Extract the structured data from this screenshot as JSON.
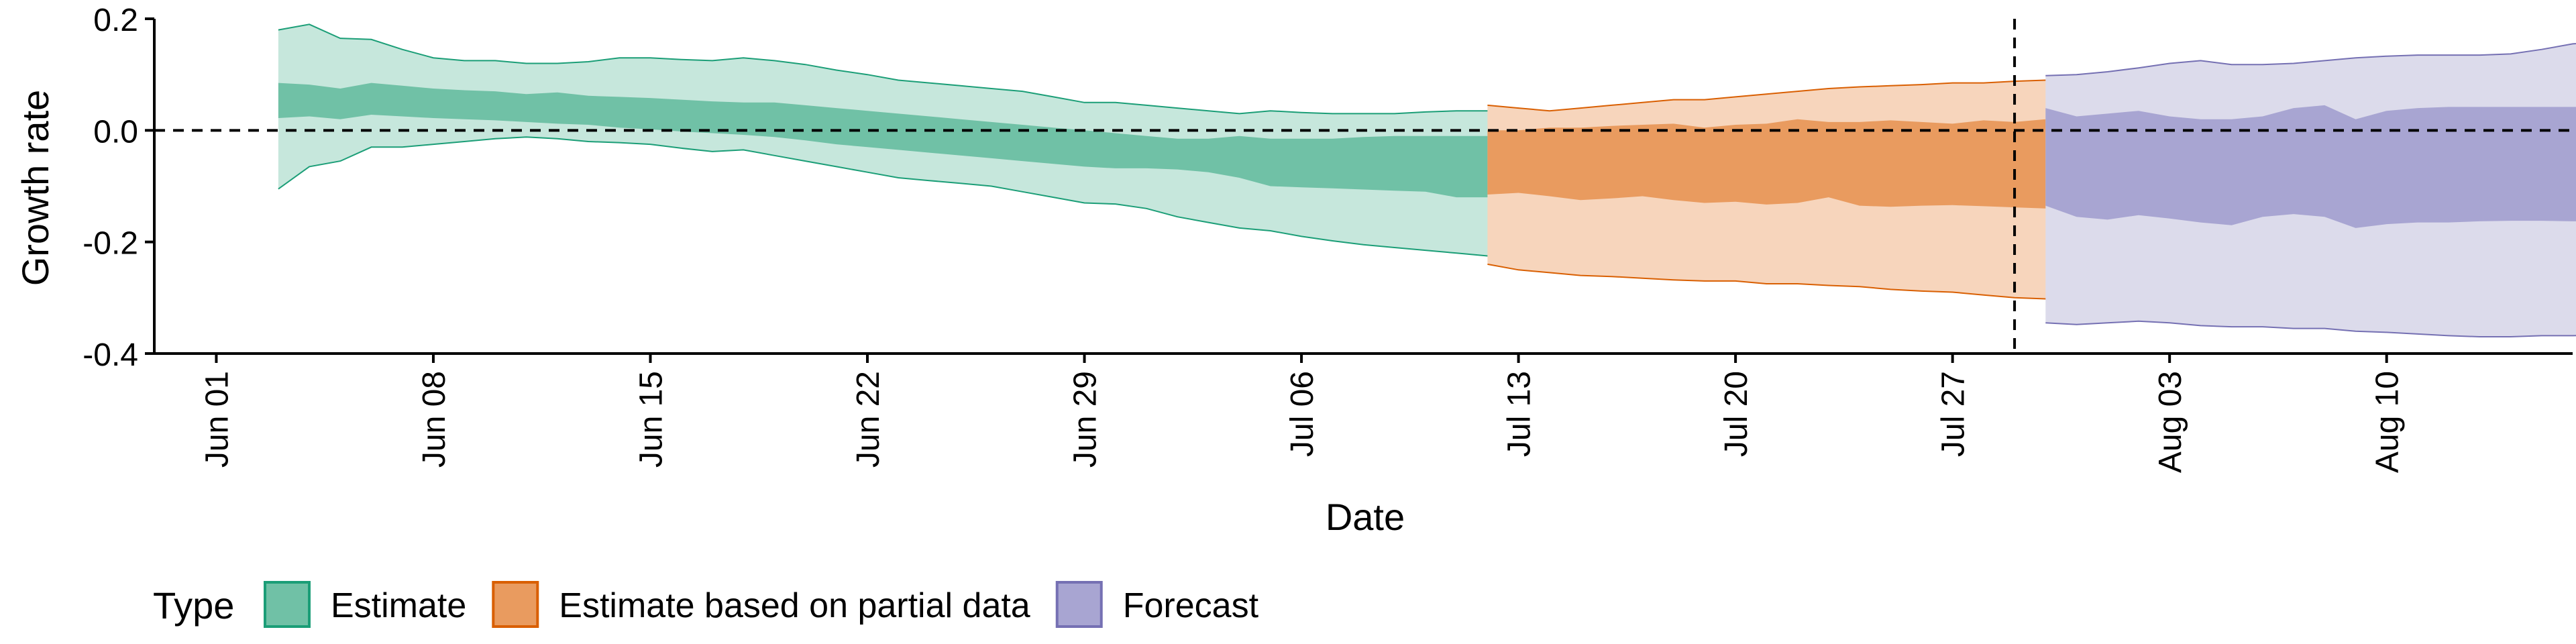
{
  "chart_data": {
    "type": "area",
    "xlabel": "Date",
    "ylabel": "Growth rate",
    "ylim": [
      -0.4,
      0.2
    ],
    "xlim": [
      "2020-05-30",
      "2020-08-16"
    ],
    "x_ticks": [
      "Jun 01",
      "Jun 08",
      "Jun 15",
      "Jun 22",
      "Jun 29",
      "Jul 06",
      "Jul 13",
      "Jul 20",
      "Jul 27",
      "Aug 03",
      "Aug 10"
    ],
    "x_tick_dates": [
      "2020-06-01",
      "2020-06-08",
      "2020-06-15",
      "2020-06-22",
      "2020-06-29",
      "2020-07-06",
      "2020-07-13",
      "2020-07-20",
      "2020-07-27",
      "2020-08-03",
      "2020-08-10"
    ],
    "y_ticks": [
      "0.2",
      "0.0",
      "-0.2",
      "-0.4"
    ],
    "y_tick_values": [
      0.2,
      0.0,
      -0.2,
      -0.4
    ],
    "hline": 0,
    "vline_date": "2020-07-29",
    "grid": false,
    "legend": {
      "title": "Type",
      "position": "bottom-left"
    },
    "series": [
      {
        "name": "Estimate",
        "fill_dark": "#70c1a6",
        "fill_light": "#c6e7dc",
        "stroke": "#1b9e77",
        "start": "2020-06-03",
        "outer_upper": [
          0.18,
          0.19,
          0.165,
          0.163,
          0.145,
          0.13,
          0.125,
          0.125,
          0.12,
          0.12,
          0.123,
          0.13,
          0.13,
          0.127,
          0.125,
          0.13,
          0.125,
          0.118,
          0.108,
          0.1,
          0.09,
          0.085,
          0.08,
          0.075,
          0.07,
          0.06,
          0.05,
          0.05,
          0.045,
          0.04,
          0.035,
          0.03,
          0.035,
          0.032,
          0.03,
          0.03,
          0.03,
          0.033,
          0.035,
          0.035,
          0.04
        ],
        "inner_upper": [
          0.085,
          0.082,
          0.075,
          0.085,
          0.08,
          0.075,
          0.072,
          0.07,
          0.065,
          0.068,
          0.062,
          0.06,
          0.058,
          0.055,
          0.052,
          0.05,
          0.05,
          0.045,
          0.04,
          0.035,
          0.03,
          0.025,
          0.02,
          0.015,
          0.01,
          0.005,
          0.0,
          -0.005,
          -0.01,
          -0.015,
          -0.015,
          -0.01,
          -0.015,
          -0.015,
          -0.015,
          -0.012,
          -0.01,
          -0.01,
          -0.01,
          -0.01,
          -0.01
        ],
        "inner_lower": [
          0.022,
          0.025,
          0.02,
          0.028,
          0.025,
          0.022,
          0.02,
          0.018,
          0.015,
          0.012,
          0.01,
          0.005,
          0.002,
          -0.002,
          -0.005,
          -0.008,
          -0.012,
          -0.018,
          -0.025,
          -0.03,
          -0.035,
          -0.04,
          -0.045,
          -0.05,
          -0.055,
          -0.06,
          -0.065,
          -0.068,
          -0.068,
          -0.07,
          -0.075,
          -0.085,
          -0.1,
          -0.102,
          -0.104,
          -0.106,
          -0.108,
          -0.11,
          -0.12,
          -0.12,
          -0.122
        ],
        "outer_lower": [
          -0.105,
          -0.065,
          -0.055,
          -0.03,
          -0.03,
          -0.025,
          -0.02,
          -0.015,
          -0.012,
          -0.015,
          -0.02,
          -0.022,
          -0.025,
          -0.032,
          -0.038,
          -0.035,
          -0.045,
          -0.055,
          -0.065,
          -0.075,
          -0.085,
          -0.09,
          -0.095,
          -0.1,
          -0.11,
          -0.12,
          -0.13,
          -0.132,
          -0.14,
          -0.155,
          -0.165,
          -0.175,
          -0.18,
          -0.19,
          -0.198,
          -0.205,
          -0.21,
          -0.215,
          -0.22,
          -0.225,
          -0.228
        ]
      },
      {
        "name": "Estimate based on partial data",
        "fill_dark": "#e99b5f",
        "fill_light": "#f7d5bc",
        "stroke": "#d95f02",
        "start": "2020-07-12",
        "outer_upper": [
          0.045,
          0.04,
          0.035,
          0.04,
          0.045,
          0.05,
          0.055,
          0.055,
          0.06,
          0.065,
          0.07,
          0.075,
          0.078,
          0.08,
          0.082,
          0.085,
          0.085,
          0.088,
          0.09,
          0.092,
          0.095,
          0.09,
          0.095,
          0.1,
          0.095,
          0.095,
          0.098,
          0.11,
          0.1
        ],
        "inner_upper": [
          0.0,
          0.0,
          0.005,
          0.005,
          0.008,
          0.01,
          0.012,
          0.005,
          0.01,
          0.012,
          0.02,
          0.015,
          0.015,
          0.018,
          0.015,
          0.012,
          0.018,
          0.015,
          0.02,
          0.018,
          0.015,
          0.02,
          0.015,
          0.02,
          0.015,
          0.018,
          0.02,
          0.03,
          0.035
        ],
        "inner_lower": [
          -0.115,
          -0.112,
          -0.118,
          -0.125,
          -0.122,
          -0.118,
          -0.125,
          -0.13,
          -0.128,
          -0.133,
          -0.13,
          -0.12,
          -0.135,
          -0.137,
          -0.135,
          -0.134,
          -0.136,
          -0.138,
          -0.14,
          -0.142,
          -0.145,
          -0.14,
          -0.142,
          -0.144,
          -0.145,
          -0.145,
          -0.143,
          -0.14,
          -0.138
        ],
        "outer_lower": [
          -0.24,
          -0.25,
          -0.255,
          -0.26,
          -0.262,
          -0.265,
          -0.268,
          -0.27,
          -0.27,
          -0.275,
          -0.275,
          -0.278,
          -0.28,
          -0.285,
          -0.288,
          -0.29,
          -0.295,
          -0.3,
          -0.302,
          -0.305,
          -0.31,
          -0.315,
          -0.318,
          -0.32,
          -0.32,
          -0.322,
          -0.322,
          -0.33,
          -0.345
        ]
      },
      {
        "name": "Forecast",
        "fill_dark": "#a8a5d2",
        "fill_light": "#dcdbeb",
        "stroke": "#7570b3",
        "start": "2020-07-30",
        "outer_upper": [
          0.098,
          0.1,
          0.105,
          0.112,
          0.12,
          0.125,
          0.118,
          0.118,
          0.12,
          0.125,
          0.13,
          0.133,
          0.135,
          0.135,
          0.135,
          0.137,
          0.145,
          0.155,
          0.16,
          0.172
        ],
        "inner_upper": [
          0.04,
          0.025,
          0.03,
          0.035,
          0.025,
          0.02,
          0.02,
          0.025,
          0.04,
          0.045,
          0.02,
          0.035,
          0.04,
          0.042,
          0.042,
          0.042,
          0.042,
          0.042,
          0.042,
          0.042
        ],
        "inner_lower": [
          -0.135,
          -0.155,
          -0.16,
          -0.152,
          -0.158,
          -0.165,
          -0.17,
          -0.155,
          -0.15,
          -0.155,
          -0.175,
          -0.168,
          -0.165,
          -0.165,
          -0.163,
          -0.162,
          -0.162,
          -0.163,
          -0.163,
          -0.163
        ],
        "outer_lower": [
          -0.345,
          -0.348,
          -0.345,
          -0.342,
          -0.345,
          -0.35,
          -0.352,
          -0.352,
          -0.355,
          -0.355,
          -0.36,
          -0.362,
          -0.365,
          -0.368,
          -0.37,
          -0.37,
          -0.368,
          -0.368,
          -0.366,
          -0.365
        ]
      }
    ]
  }
}
